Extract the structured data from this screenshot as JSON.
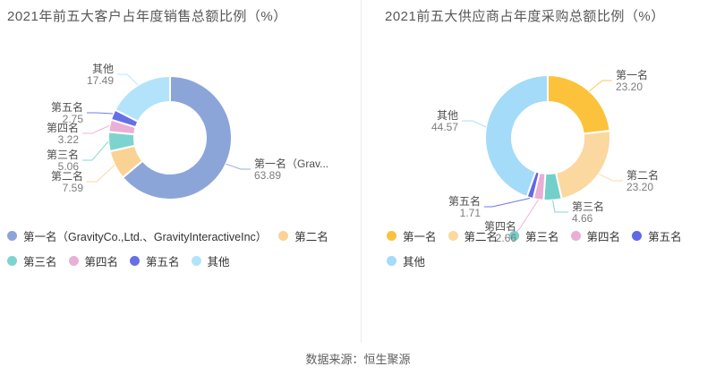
{
  "footer": {
    "text": "数据来源：恒生聚源"
  },
  "chart_data": [
    {
      "type": "pie",
      "variant": "donut",
      "title": "2021年前五大客户占年度销售总额比例（%）",
      "unit": "%",
      "legend_position": "bottom-left",
      "slices": [
        {
          "name": "第一名",
          "pie_label": "第一名（Grav...",
          "legend_label": "第一名（GravityCo.,Ltd.、GravityInteractiveInc）",
          "value": 63.89,
          "display": "63.89",
          "color": "#8CA5D9"
        },
        {
          "name": "第二名",
          "value": 7.59,
          "display": "7.59",
          "color": "#FAD394"
        },
        {
          "name": "第三名",
          "value": 5.06,
          "display": "5.06",
          "color": "#7DD4CE"
        },
        {
          "name": "第四名",
          "value": 3.22,
          "display": "3.22",
          "color": "#EAAFD7"
        },
        {
          "name": "第五名",
          "value": 2.75,
          "display": "2.75",
          "color": "#6670E5"
        },
        {
          "name": "其他",
          "value": 17.49,
          "display": "17.49",
          "color": "#B3E3FB"
        }
      ]
    },
    {
      "type": "pie",
      "variant": "donut",
      "title": "2021前五大供应商占年度采购总额比例（%）",
      "unit": "%",
      "legend_position": "bottom-left",
      "slices": [
        {
          "name": "第一名",
          "value": 23.2,
          "display": "23.20",
          "color": "#FCC23C"
        },
        {
          "name": "第二名",
          "value": 23.2,
          "display": "23.20",
          "color": "#FAD8A0"
        },
        {
          "name": "第三名",
          "value": 4.66,
          "display": "4.66",
          "color": "#73CFC9"
        },
        {
          "name": "第四名",
          "value": 2.66,
          "display": "2.66",
          "color": "#E9AED6"
        },
        {
          "name": "第五名",
          "value": 1.71,
          "display": "1.71",
          "color": "#5D69E5"
        },
        {
          "name": "其他",
          "value": 44.57,
          "display": "44.57",
          "color": "#A3DBF8"
        }
      ]
    }
  ]
}
